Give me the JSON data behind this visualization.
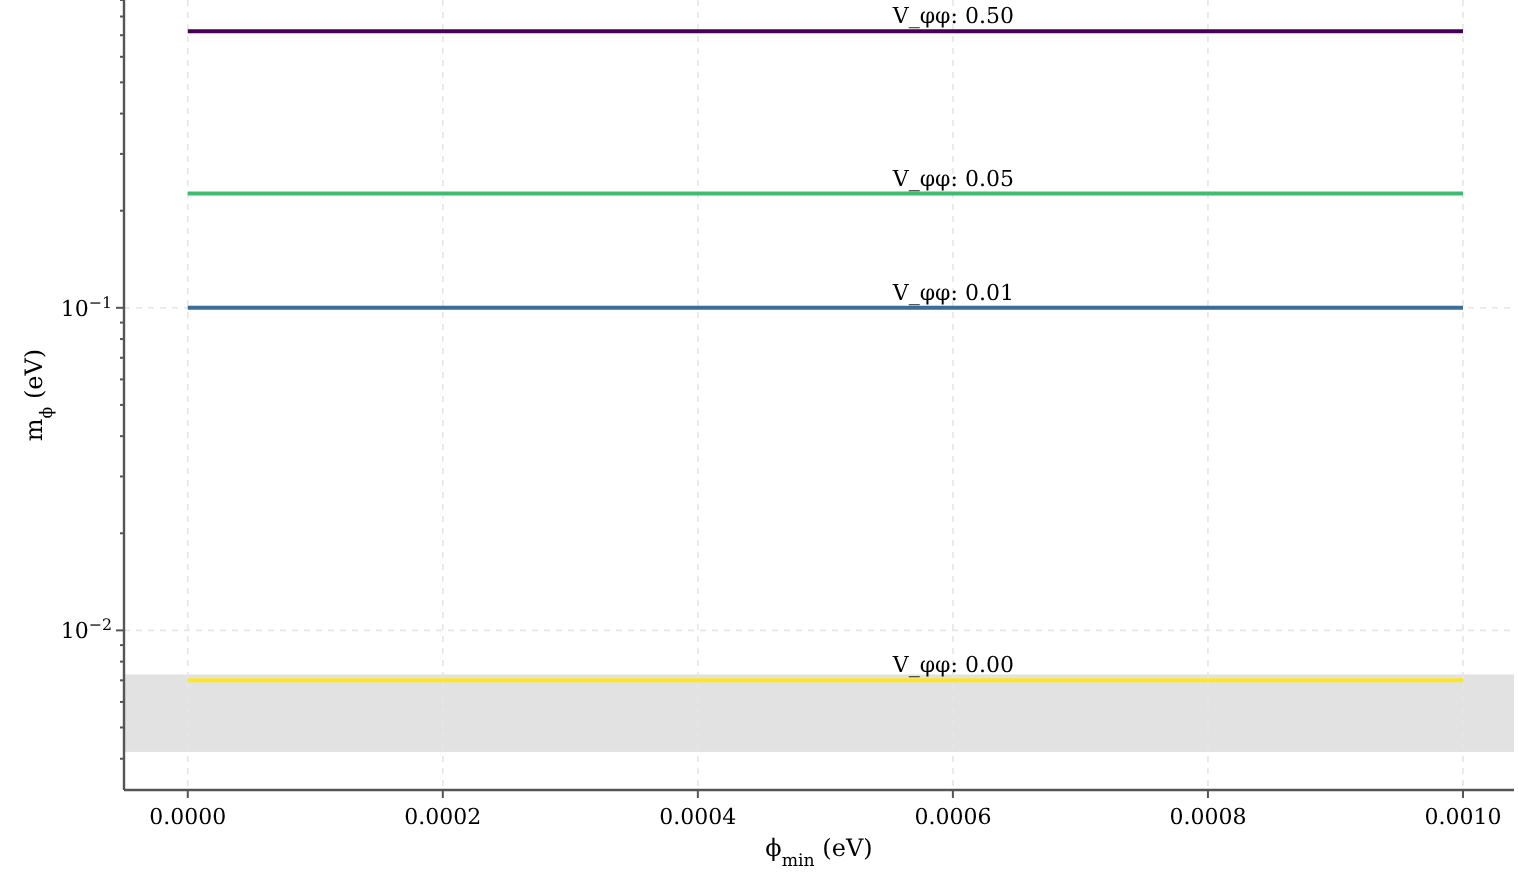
{
  "chart_data": {
    "type": "line",
    "xlabel": "ϕ$_{min}$ (eV)",
    "ylabel": "m$_{ϕ}$ (eV)",
    "log": "y",
    "grid": true,
    "marker": "none",
    "line_style": "solid",
    "xlim": [
      -5e-05,
      0.00104
    ],
    "xticks": [
      {
        "value": 0,
        "label": "0.0000"
      },
      {
        "value": 0.0002,
        "label": "0.0002"
      },
      {
        "value": 0.0004,
        "label": "0.0004"
      },
      {
        "value": 0.0006,
        "label": "0.0006"
      },
      {
        "value": 0.0008,
        "label": "0.0008"
      },
      {
        "value": 0.001,
        "label": "0.0010"
      }
    ],
    "ylim": [
      0.0032,
      0.9
    ],
    "yticks": [
      {
        "value": 0.004,
        "label": null
      },
      {
        "value": 0.005,
        "label": null
      },
      {
        "value": 0.006,
        "label": null
      },
      {
        "value": 0.007,
        "label": null
      },
      {
        "value": 0.008,
        "label": null
      },
      {
        "value": 0.009,
        "label": null
      },
      {
        "value": 0.01,
        "label": "10$^{−2}$"
      },
      {
        "value": 0.02,
        "label": null
      },
      {
        "value": 0.03,
        "label": null
      },
      {
        "value": 0.04,
        "label": null
      },
      {
        "value": 0.05,
        "label": null
      },
      {
        "value": 0.06,
        "label": null
      },
      {
        "value": 0.07,
        "label": null
      },
      {
        "value": 0.08,
        "label": null
      },
      {
        "value": 0.09,
        "label": null
      },
      {
        "value": 0.1,
        "label": "10$^{−1}$"
      },
      {
        "value": 0.2,
        "label": null
      },
      {
        "value": 0.3,
        "label": null
      },
      {
        "value": 0.4,
        "label": null
      },
      {
        "value": 0.5,
        "label": null
      },
      {
        "value": 0.6,
        "label": null
      },
      {
        "value": 0.7,
        "label": null
      },
      {
        "value": 0.8,
        "label": null
      },
      {
        "value": 0.9,
        "label": null
      }
    ],
    "x": [
      0,
      0.001
    ],
    "series": [
      {
        "color": "#440154",
        "values": [
          0.72,
          0.72
        ]
      },
      {
        "color": "#3fbc73",
        "values": [
          0.226,
          0.226
        ]
      },
      {
        "color": "#3b6d9a",
        "values": [
          0.1,
          0.1
        ]
      },
      {
        "color": "#fde725",
        "values": [
          0.007,
          0.007
        ]
      }
    ],
    "bands": [
      {
        "axis": "y",
        "from": 0.0042,
        "to": 0.0073,
        "color": "#e2e2e2"
      }
    ],
    "annotations": [
      {
        "text": "V_φφ: 0.50",
        "y": 0.72
      },
      {
        "text": "V_φφ: 0.05",
        "y": 0.226
      },
      {
        "text": "V_φφ: 0.01",
        "y": 0.1
      },
      {
        "text": "V_φφ: 0.00",
        "y": 0.007
      }
    ]
  }
}
